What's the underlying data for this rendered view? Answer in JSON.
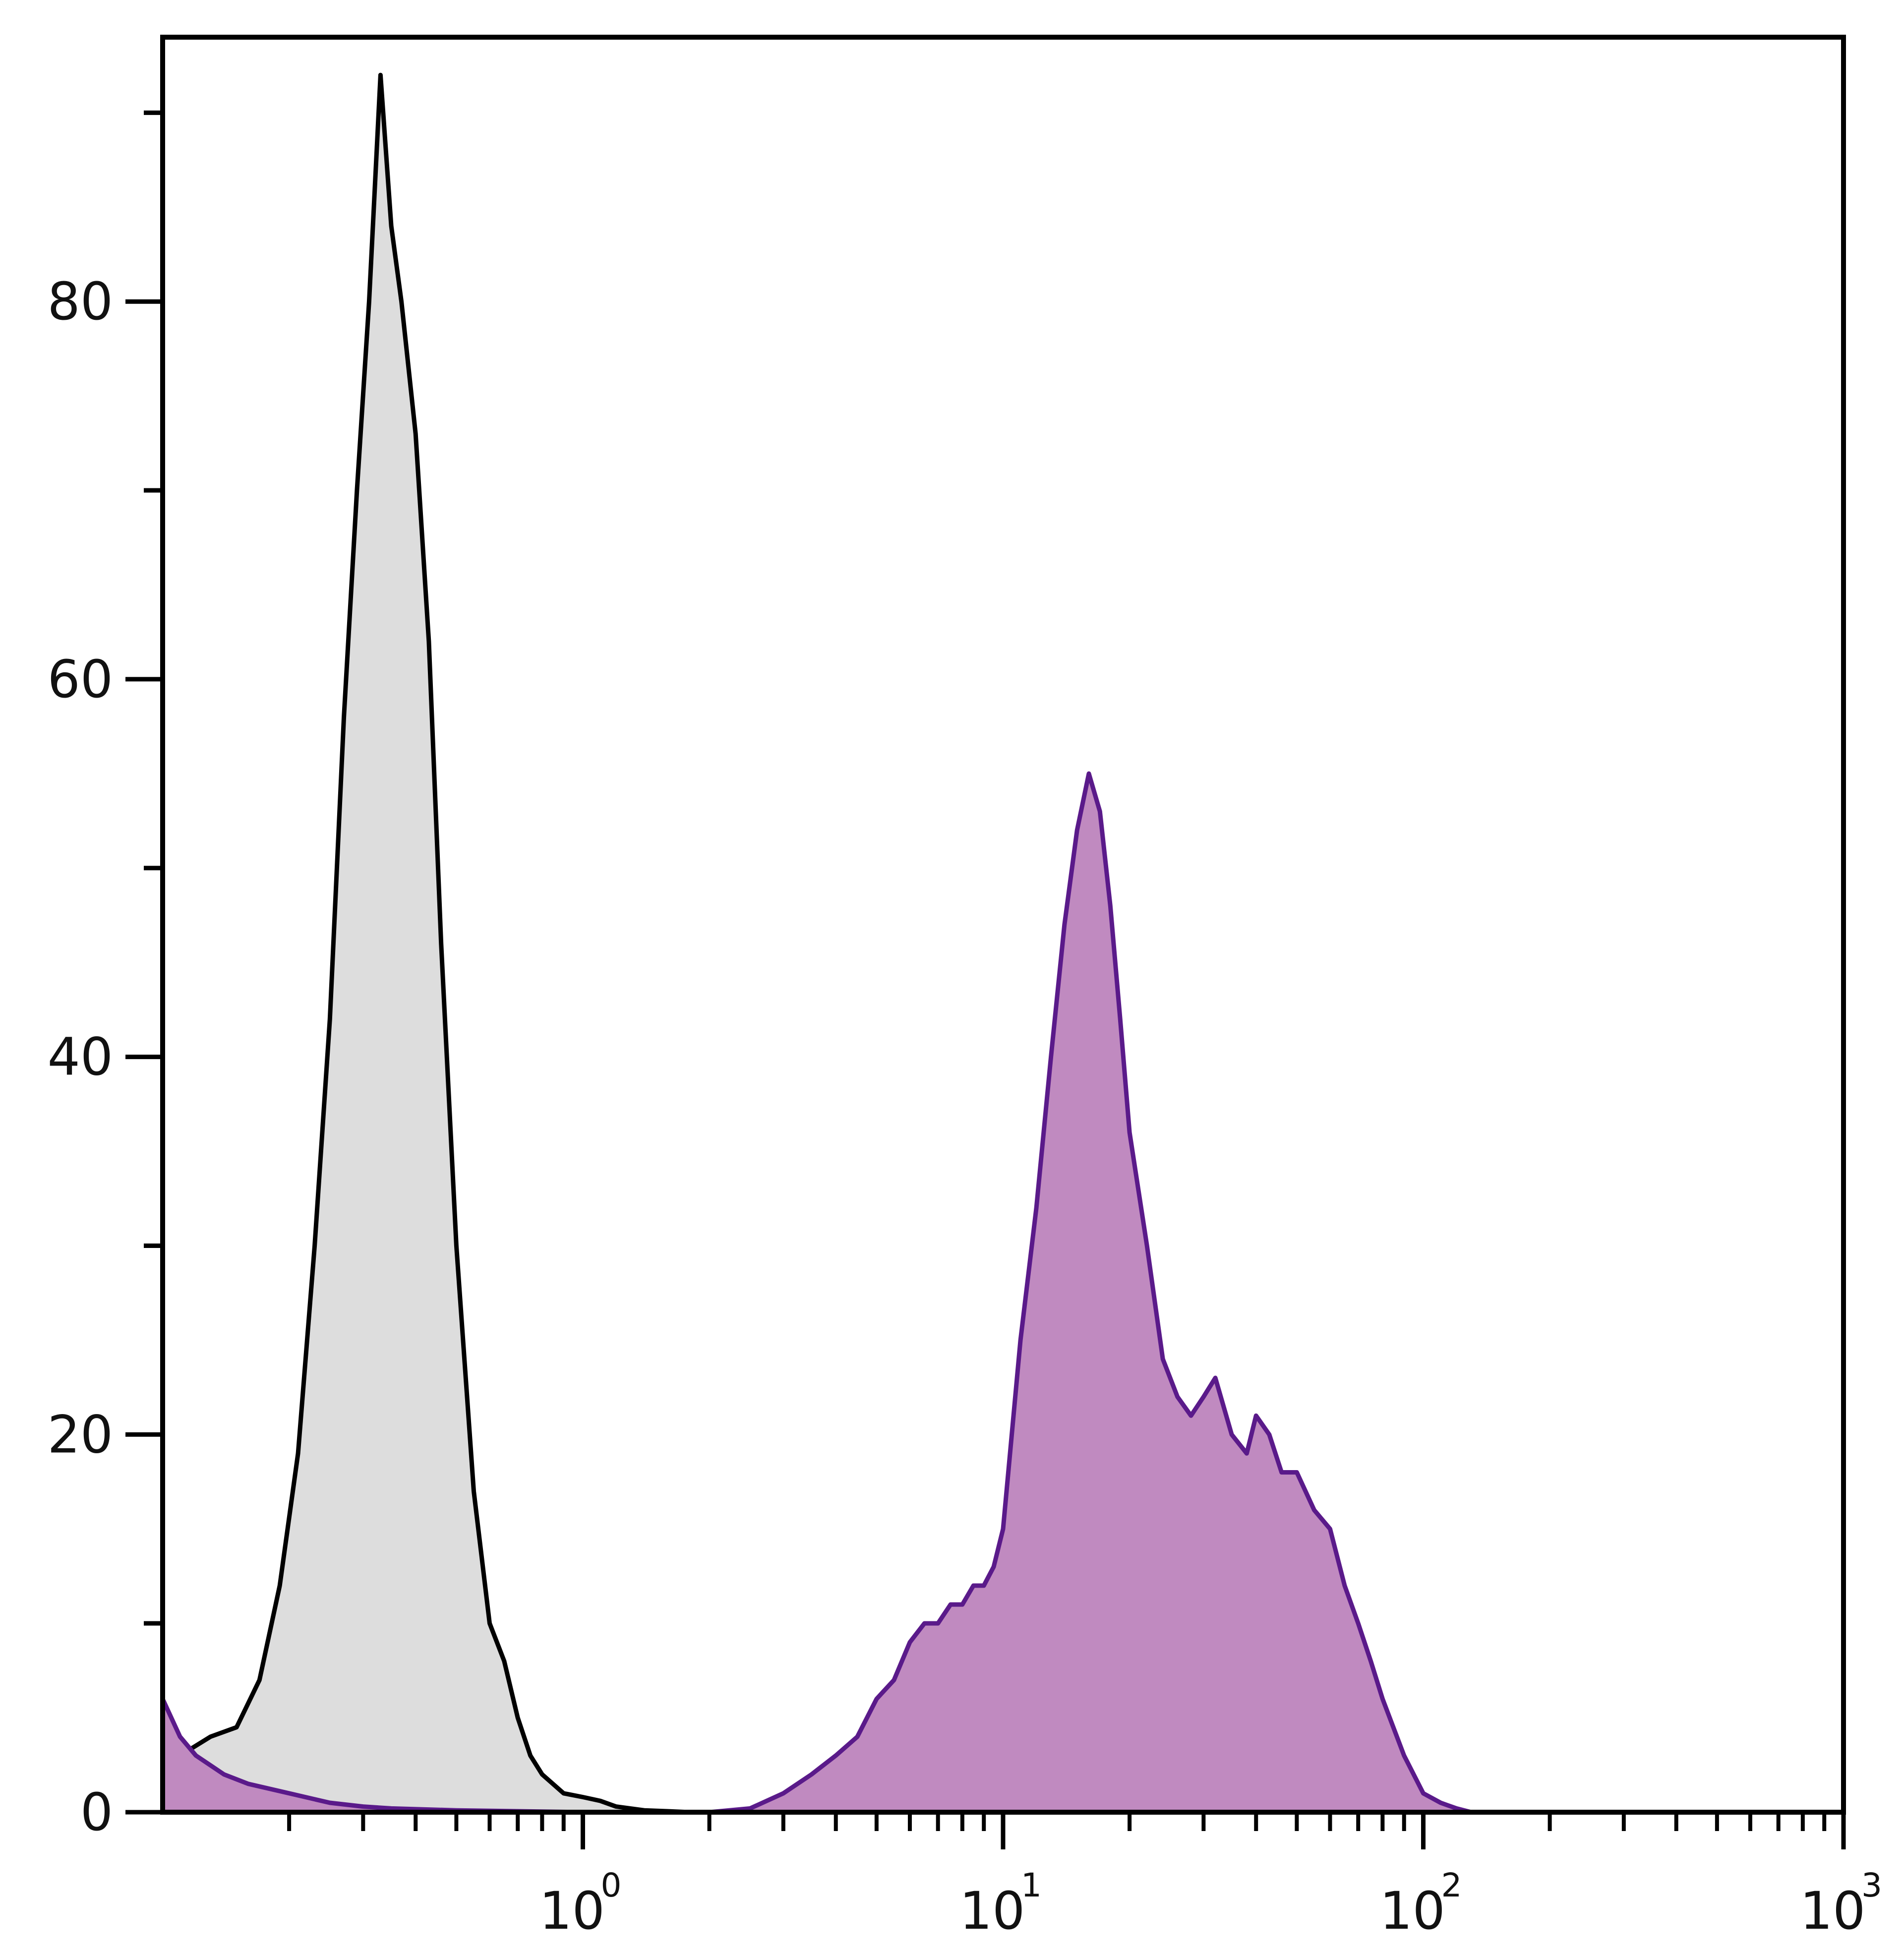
{
  "chart_data": {
    "type": "area",
    "title": "",
    "xlabel": "",
    "ylabel": "",
    "x_scale": "log",
    "xlim": [
      0.1,
      1000
    ],
    "ylim": [
      0,
      94
    ],
    "y_ticks": [
      0,
      20,
      40,
      60,
      80
    ],
    "y_tick_labels": [
      "0",
      "20",
      "40",
      "60",
      "80"
    ],
    "x_ticks": [
      {
        "value": 1,
        "base": "10",
        "exp": "0"
      },
      {
        "value": 10,
        "base": "10",
        "exp": "1"
      },
      {
        "value": 100,
        "base": "10",
        "exp": "2"
      },
      {
        "value": 1000,
        "base": "10",
        "exp": "3"
      }
    ],
    "grid": false,
    "legend": "none",
    "series": [
      {
        "fill": "#dddddd",
        "stroke": "#000000",
        "x": [
          0.1,
          0.11,
          0.13,
          0.15,
          0.17,
          0.19,
          0.21,
          0.23,
          0.25,
          0.27,
          0.29,
          0.31,
          0.33,
          0.35,
          0.37,
          0.4,
          0.43,
          0.46,
          0.5,
          0.55,
          0.6,
          0.65,
          0.7,
          0.75,
          0.8,
          0.9,
          1.0,
          1.1,
          1.2,
          1.4,
          1.6,
          1.8
        ],
        "y": [
          0,
          3,
          4,
          4.5,
          7,
          12,
          19,
          30,
          42,
          58,
          70,
          80,
          92,
          84,
          80,
          73,
          62,
          46,
          30,
          17,
          10,
          8,
          5,
          3,
          2,
          1,
          0.8,
          0.6,
          0.3,
          0.1,
          0.05,
          0
        ]
      },
      {
        "fill": "#c08ac0",
        "stroke": "#5a1a8a",
        "x": [
          0.1,
          0.11,
          0.12,
          0.14,
          0.16,
          0.2,
          0.25,
          0.3,
          0.35,
          0.5,
          1.0,
          2.0,
          2.5,
          3.0,
          3.5,
          4.0,
          4.5,
          5.0,
          5.5,
          6.0,
          6.5,
          7.0,
          7.5,
          8.0,
          8.5,
          9.0,
          9.5,
          10.0,
          11.0,
          12.0,
          13.0,
          14.0,
          15.0,
          16.0,
          17.0,
          18.0,
          19.0,
          20.0,
          22.0,
          24.0,
          26.0,
          28.0,
          30.0,
          32.0,
          35.0,
          38.0,
          40.0,
          43.0,
          46.0,
          50.0,
          55.0,
          60.0,
          65.0,
          70.0,
          75.0,
          80.0,
          90.0,
          100.0,
          110.0,
          120.0,
          130.0
        ],
        "y": [
          6,
          4,
          3,
          2,
          1.5,
          1,
          0.5,
          0.3,
          0.2,
          0.1,
          0,
          0,
          0.2,
          1,
          2,
          3,
          4,
          6,
          7,
          9,
          10,
          10,
          11,
          11,
          12,
          12,
          13,
          15,
          25,
          32,
          40,
          47,
          52,
          55,
          53,
          48,
          42,
          36,
          30,
          24,
          22,
          21,
          22,
          23,
          20,
          19,
          21,
          20,
          18,
          18,
          16,
          15,
          12,
          10,
          8,
          6,
          3,
          1,
          0.5,
          0.2,
          0
        ]
      }
    ]
  }
}
